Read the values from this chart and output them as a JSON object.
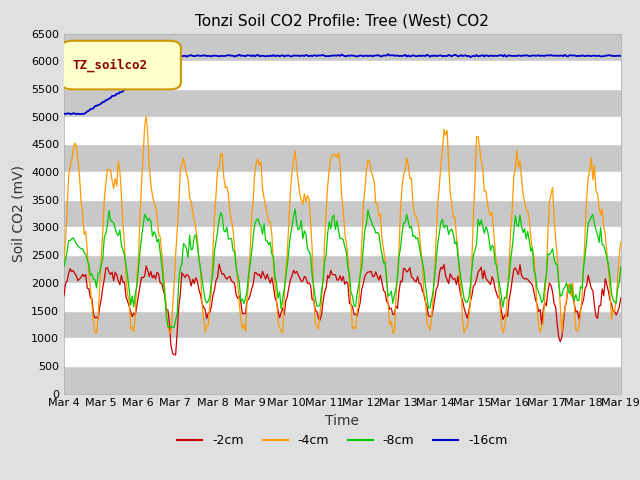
{
  "title": "Tonzi Soil CO2 Profile: Tree (West) CO2",
  "ylabel": "Soil CO2 (mV)",
  "xlabel": "Time",
  "ylim": [
    0,
    6500
  ],
  "yticks": [
    0,
    500,
    1000,
    1500,
    2000,
    2500,
    3000,
    3500,
    4000,
    4500,
    5000,
    5500,
    6000,
    6500
  ],
  "xtick_labels": [
    "Mar 4",
    "Mar 5",
    "Mar 6",
    "Mar 7",
    "Mar 8",
    "Mar 9",
    "Mar 10",
    "Mar 11",
    "Mar 12",
    "Mar 13",
    "Mar 14",
    "Mar 15",
    "Mar 16",
    "Mar 17",
    "Mar 18",
    "Mar 19"
  ],
  "legend_title": "TZ_soilco2",
  "legend_entries": [
    "-2cm",
    "-4cm",
    "-8cm",
    "-16cm"
  ],
  "legend_colors": [
    "#cc0000",
    "#ff9900",
    "#00cc00",
    "#0000cc"
  ],
  "line_colors": [
    "#cc0000",
    "#ff9900",
    "#00cc00",
    "#0000cc"
  ],
  "bg_color": "#e0e0e0",
  "plot_bg_color": "#d8d8d8",
  "title_fontsize": 11,
  "axis_label_fontsize": 10,
  "tick_fontsize": 8,
  "legend_fontsize": 9
}
